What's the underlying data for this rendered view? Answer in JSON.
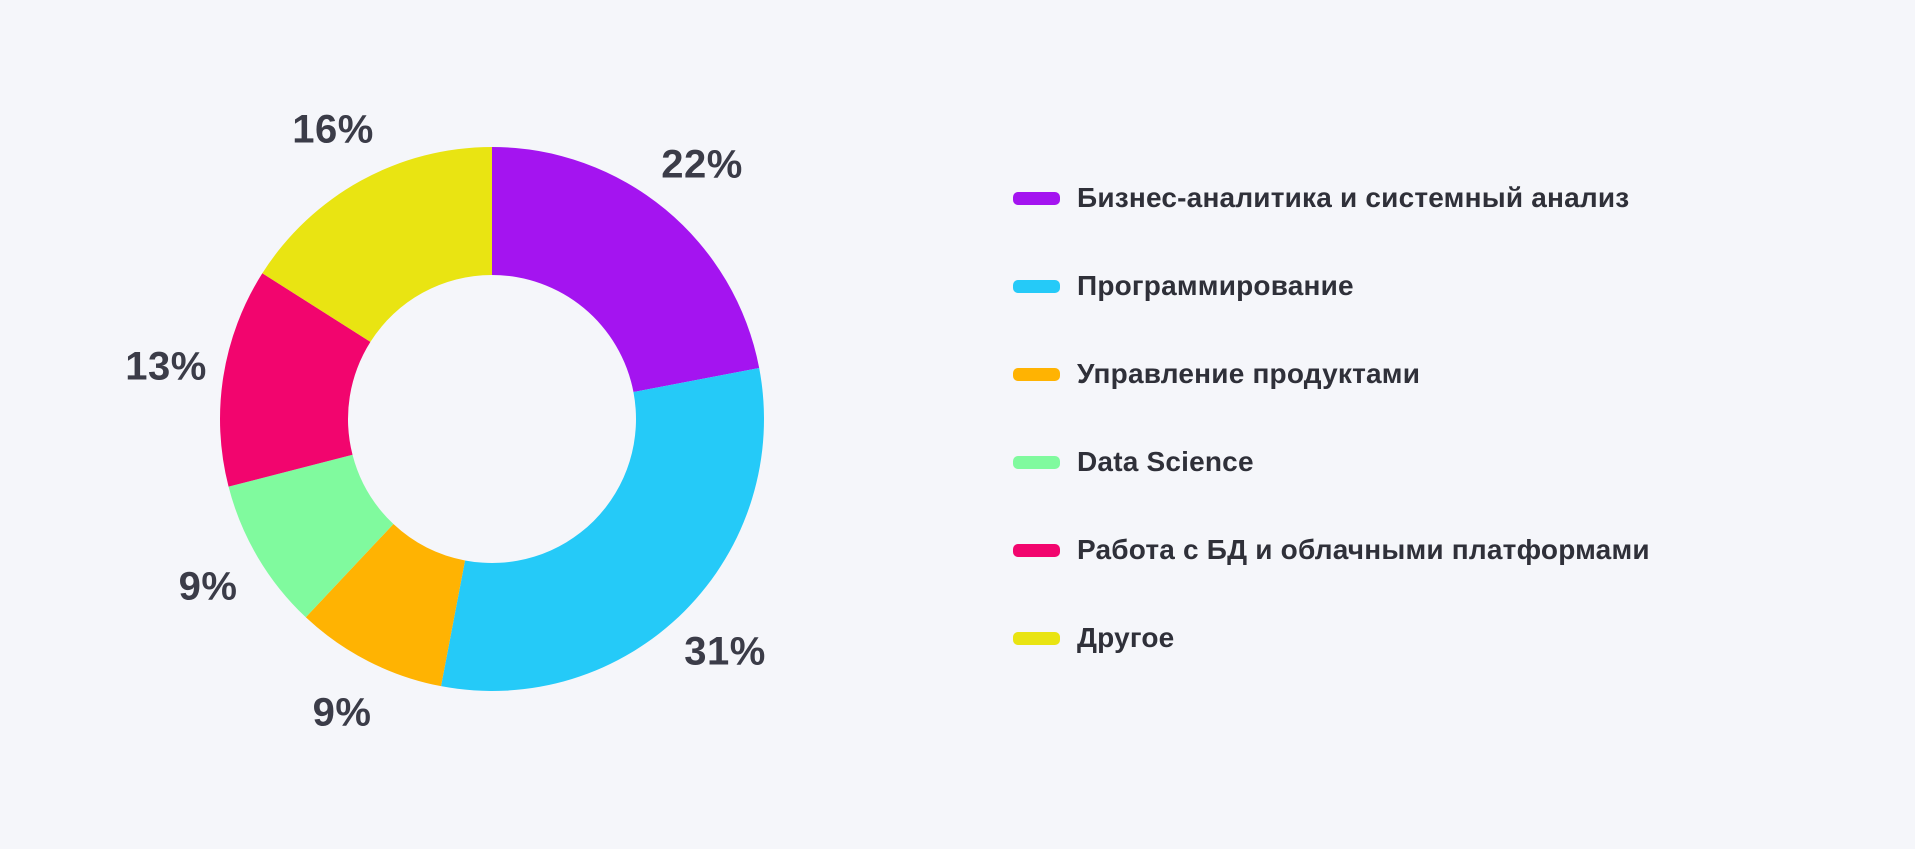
{
  "background_color": "#F5F6FA",
  "label_text_color": "#3B3C48",
  "legend_text_color": "#2F3039",
  "chart_data": {
    "type": "pie",
    "variant": "donut",
    "direction": "clockwise",
    "start_angle_deg": 0,
    "legend_position": "right",
    "unit": "%",
    "categories": [
      "Бизнес-аналитика и системный анализ",
      "Программирование",
      "Управление продуктами",
      "Data Science",
      "Работа с БД и облачными платформами",
      "Другое"
    ],
    "values": [
      22,
      31,
      9,
      9,
      13,
      16
    ],
    "labels": [
      "22%",
      "31%",
      "9%",
      "9%",
      "13%",
      "16%"
    ],
    "colors": [
      "#A414F0",
      "#25CAF8",
      "#FFB302",
      "#80FA9E",
      "#F2056E",
      "#E9E412"
    ]
  }
}
